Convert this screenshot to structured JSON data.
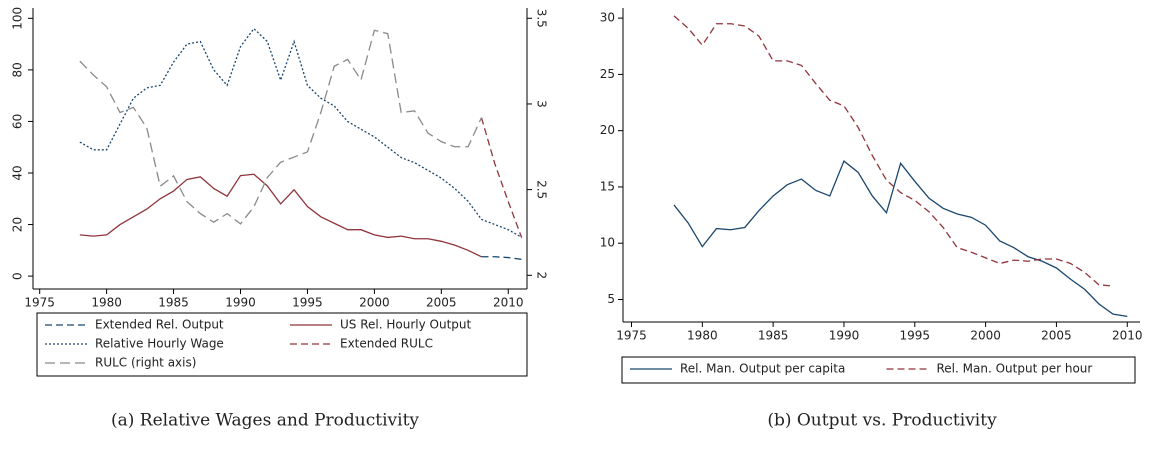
{
  "chart_data": [
    {
      "type": "line",
      "caption": "(a) Relative Wages and Productivity",
      "x": [
        1978,
        1979,
        1980,
        1981,
        1982,
        1983,
        1984,
        1985,
        1986,
        1987,
        1988,
        1989,
        1990,
        1991,
        1992,
        1993,
        1994,
        1995,
        1996,
        1997,
        1998,
        1999,
        2000,
        2001,
        2002,
        2003,
        2004,
        2005,
        2006,
        2007,
        2008,
        2009,
        2010,
        2011
      ],
      "xlim": [
        1974.5,
        2011.4
      ],
      "xticks": [
        1975,
        1980,
        1985,
        1990,
        1995,
        2000,
        2005,
        2010
      ],
      "ylim": [
        -5,
        104
      ],
      "yticks": [
        0,
        20,
        40,
        60,
        80,
        100
      ],
      "y2lim": [
        1.92,
        3.56
      ],
      "y2ticks": [
        2,
        2.5,
        3,
        3.5
      ],
      "legend": "bottom",
      "series": [
        {
          "name": "Extended Rel. Output",
          "color": "#1a476f",
          "dash": "dashed",
          "values": [
            null,
            null,
            null,
            null,
            null,
            null,
            null,
            null,
            null,
            null,
            null,
            null,
            null,
            null,
            null,
            null,
            null,
            null,
            null,
            null,
            null,
            null,
            null,
            null,
            null,
            null,
            null,
            null,
            null,
            null,
            7.5,
            7.5,
            7.2,
            6.5
          ]
        },
        {
          "name": "US Rel. Hourly Output",
          "color": "#90353b",
          "dash": "solid",
          "values": [
            16,
            15.5,
            16,
            20,
            23,
            26,
            30,
            33,
            37.5,
            38.5,
            34,
            31,
            39,
            39.5,
            35,
            28,
            33.5,
            27,
            23,
            20.5,
            18,
            18,
            16,
            15,
            15.5,
            14.5,
            14.5,
            13.5,
            12,
            10,
            7.5,
            null,
            null,
            null
          ]
        },
        {
          "name": "Relative Hourly Wage",
          "color": "#1a476f",
          "dash": "dotted",
          "values": [
            52,
            49,
            49,
            59,
            69,
            73,
            74,
            83,
            90,
            91,
            80,
            74,
            89,
            96,
            91,
            76,
            91,
            74,
            69,
            66,
            60,
            57,
            54,
            50,
            46,
            44,
            41,
            38,
            34,
            29,
            22,
            20,
            18,
            15
          ]
        },
        {
          "name": "Extended RULC",
          "color": "#90353b",
          "dash": "dashed",
          "axis": "y2",
          "values": [
            null,
            null,
            null,
            null,
            null,
            null,
            null,
            null,
            null,
            null,
            null,
            null,
            null,
            null,
            null,
            null,
            null,
            null,
            null,
            null,
            null,
            null,
            null,
            null,
            null,
            null,
            null,
            null,
            null,
            null,
            2.92,
            2.65,
            2.43,
            2.22
          ]
        },
        {
          "name": "RULC (right axis)",
          "color": "#8a8a8a",
          "dash": "longdash",
          "axis": "y2",
          "values": [
            3.25,
            3.17,
            3.1,
            2.95,
            2.98,
            2.86,
            2.52,
            2.58,
            2.43,
            2.36,
            2.31,
            2.36,
            2.3,
            2.4,
            2.57,
            2.66,
            2.69,
            2.72,
            2.95,
            3.22,
            3.26,
            3.14,
            3.43,
            3.41,
            2.95,
            2.96,
            2.83,
            2.78,
            2.75,
            2.75,
            2.92,
            null,
            null,
            null
          ]
        }
      ]
    },
    {
      "type": "line",
      "caption": "(b) Output vs. Productivity",
      "x": [
        1978,
        1979,
        1980,
        1981,
        1982,
        1983,
        1984,
        1985,
        1986,
        1987,
        1988,
        1989,
        1990,
        1991,
        1992,
        1993,
        1994,
        1995,
        1996,
        1997,
        1998,
        1999,
        2000,
        2001,
        2002,
        2003,
        2004,
        2005,
        2006,
        2007,
        2008,
        2009,
        2010
      ],
      "xlim": [
        1974.4,
        2010.9
      ],
      "xticks": [
        1975,
        1980,
        1985,
        1990,
        1995,
        2000,
        2005,
        2010
      ],
      "ylim": [
        3,
        30.9
      ],
      "yticks": [
        5,
        10,
        15,
        20,
        25,
        30
      ],
      "legend": "bottom",
      "series": [
        {
          "name": "Rel. Man. Output per capita",
          "color": "#1a476f",
          "dash": "solid",
          "values": [
            13.4,
            11.8,
            9.7,
            11.3,
            11.2,
            11.4,
            12.9,
            14.2,
            15.2,
            15.7,
            14.7,
            14.2,
            17.3,
            16.3,
            14.2,
            12.7,
            17.1,
            15.5,
            14,
            13.1,
            12.6,
            12.3,
            11.6,
            10.2,
            9.6,
            8.8,
            8.4,
            7.8,
            6.8,
            5.9,
            4.6,
            3.7,
            3.5
          ]
        },
        {
          "name": "Rel. Man. Output per hour",
          "color": "#90353b",
          "dash": "dashed",
          "values": [
            30.2,
            29.1,
            27.6,
            29.5,
            29.5,
            29.3,
            28.4,
            26.2,
            26.2,
            25.8,
            24.2,
            22.7,
            22.2,
            20.3,
            17.8,
            15.6,
            14.5,
            13.8,
            12.8,
            11.4,
            9.6,
            9.2,
            8.7,
            8.2,
            8.5,
            8.4,
            8.6,
            8.6,
            8.2,
            7.4,
            6.3,
            6.2,
            null
          ]
        }
      ]
    }
  ]
}
